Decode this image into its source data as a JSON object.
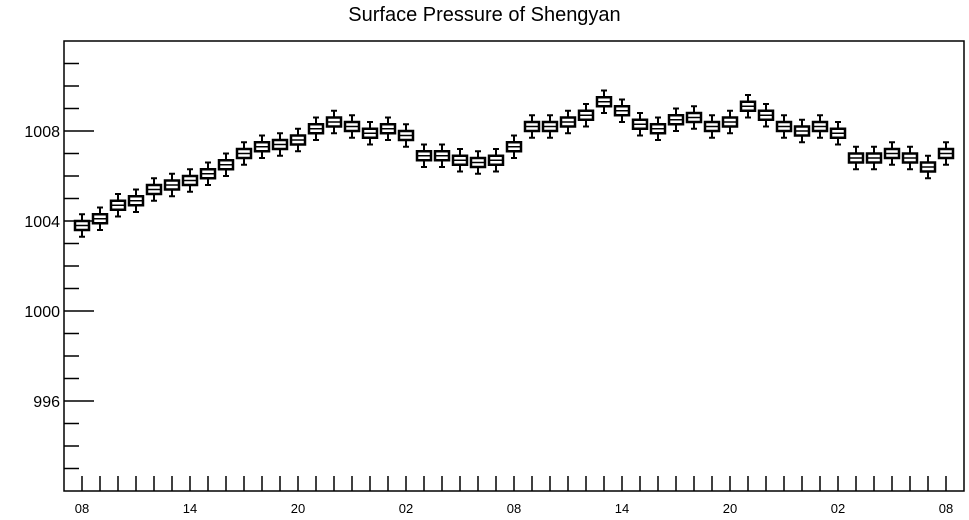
{
  "chart_data": {
    "type": "box",
    "title": "Surface Pressure of Shengyan",
    "xlabel": "",
    "ylabel": "",
    "ylim": [
      992.0,
      1012.0
    ],
    "y_ticks": [
      996,
      1000,
      1004,
      1008
    ],
    "x_tick_labels": [
      "08",
      "14",
      "20",
      "02",
      "08",
      "14",
      "20",
      "02",
      "08"
    ],
    "x_tick_steps": [
      0,
      6,
      12,
      18,
      24,
      30,
      36,
      42,
      48
    ],
    "grid": false,
    "box_series": [
      {
        "step": 0,
        "median": 1003.8,
        "q1": 1003.6,
        "q3": 1004.0,
        "low": 1003.3,
        "high": 1004.3
      },
      {
        "step": 1,
        "median": 1004.1,
        "q1": 1003.9,
        "q3": 1004.3,
        "low": 1003.6,
        "high": 1004.6
      },
      {
        "step": 2,
        "median": 1004.7,
        "q1": 1004.5,
        "q3": 1004.9,
        "low": 1004.2,
        "high": 1005.2
      },
      {
        "step": 3,
        "median": 1004.9,
        "q1": 1004.7,
        "q3": 1005.1,
        "low": 1004.4,
        "high": 1005.4
      },
      {
        "step": 4,
        "median": 1005.4,
        "q1": 1005.2,
        "q3": 1005.6,
        "low": 1004.9,
        "high": 1005.9
      },
      {
        "step": 5,
        "median": 1005.6,
        "q1": 1005.4,
        "q3": 1005.8,
        "low": 1005.1,
        "high": 1006.1
      },
      {
        "step": 6,
        "median": 1005.8,
        "q1": 1005.6,
        "q3": 1006.0,
        "low": 1005.3,
        "high": 1006.3
      },
      {
        "step": 7,
        "median": 1006.1,
        "q1": 1005.9,
        "q3": 1006.3,
        "low": 1005.6,
        "high": 1006.6
      },
      {
        "step": 8,
        "median": 1006.5,
        "q1": 1006.3,
        "q3": 1006.7,
        "low": 1006.0,
        "high": 1007.0
      },
      {
        "step": 9,
        "median": 1007.0,
        "q1": 1006.8,
        "q3": 1007.2,
        "low": 1006.5,
        "high": 1007.5
      },
      {
        "step": 10,
        "median": 1007.3,
        "q1": 1007.1,
        "q3": 1007.5,
        "low": 1006.8,
        "high": 1007.8
      },
      {
        "step": 11,
        "median": 1007.4,
        "q1": 1007.2,
        "q3": 1007.6,
        "low": 1006.9,
        "high": 1007.9
      },
      {
        "step": 12,
        "median": 1007.6,
        "q1": 1007.4,
        "q3": 1007.8,
        "low": 1007.1,
        "high": 1008.1
      },
      {
        "step": 13,
        "median": 1008.1,
        "q1": 1007.9,
        "q3": 1008.3,
        "low": 1007.6,
        "high": 1008.6
      },
      {
        "step": 14,
        "median": 1008.4,
        "q1": 1008.2,
        "q3": 1008.6,
        "low": 1007.9,
        "high": 1008.9
      },
      {
        "step": 15,
        "median": 1008.2,
        "q1": 1008.0,
        "q3": 1008.4,
        "low": 1007.7,
        "high": 1008.7
      },
      {
        "step": 16,
        "median": 1007.9,
        "q1": 1007.7,
        "q3": 1008.1,
        "low": 1007.4,
        "high": 1008.4
      },
      {
        "step": 17,
        "median": 1008.1,
        "q1": 1007.9,
        "q3": 1008.3,
        "low": 1007.6,
        "high": 1008.6
      },
      {
        "step": 18,
        "median": 1007.8,
        "q1": 1007.6,
        "q3": 1008.0,
        "low": 1007.3,
        "high": 1008.3
      },
      {
        "step": 19,
        "median": 1006.9,
        "q1": 1006.7,
        "q3": 1007.1,
        "low": 1006.4,
        "high": 1007.4
      },
      {
        "step": 20,
        "median": 1006.9,
        "q1": 1006.7,
        "q3": 1007.1,
        "low": 1006.4,
        "high": 1007.4
      },
      {
        "step": 21,
        "median": 1006.7,
        "q1": 1006.5,
        "q3": 1006.9,
        "low": 1006.2,
        "high": 1007.2
      },
      {
        "step": 22,
        "median": 1006.6,
        "q1": 1006.4,
        "q3": 1006.8,
        "low": 1006.1,
        "high": 1007.1
      },
      {
        "step": 23,
        "median": 1006.7,
        "q1": 1006.5,
        "q3": 1006.9,
        "low": 1006.2,
        "high": 1007.2
      },
      {
        "step": 24,
        "median": 1007.3,
        "q1": 1007.1,
        "q3": 1007.5,
        "low": 1006.8,
        "high": 1007.8
      },
      {
        "step": 25,
        "median": 1008.2,
        "q1": 1008.0,
        "q3": 1008.4,
        "low": 1007.7,
        "high": 1008.7
      },
      {
        "step": 26,
        "median": 1008.2,
        "q1": 1008.0,
        "q3": 1008.4,
        "low": 1007.7,
        "high": 1008.7
      },
      {
        "step": 27,
        "median": 1008.4,
        "q1": 1008.2,
        "q3": 1008.6,
        "low": 1007.9,
        "high": 1008.9
      },
      {
        "step": 28,
        "median": 1008.7,
        "q1": 1008.5,
        "q3": 1008.9,
        "low": 1008.2,
        "high": 1009.2
      },
      {
        "step": 29,
        "median": 1009.3,
        "q1": 1009.1,
        "q3": 1009.5,
        "low": 1008.8,
        "high": 1009.8
      },
      {
        "step": 30,
        "median": 1008.9,
        "q1": 1008.7,
        "q3": 1009.1,
        "low": 1008.4,
        "high": 1009.4
      },
      {
        "step": 31,
        "median": 1008.3,
        "q1": 1008.1,
        "q3": 1008.5,
        "low": 1007.8,
        "high": 1008.8
      },
      {
        "step": 32,
        "median": 1008.1,
        "q1": 1007.9,
        "q3": 1008.3,
        "low": 1007.6,
        "high": 1008.6
      },
      {
        "step": 33,
        "median": 1008.5,
        "q1": 1008.3,
        "q3": 1008.7,
        "low": 1008.0,
        "high": 1009.0
      },
      {
        "step": 34,
        "median": 1008.6,
        "q1": 1008.4,
        "q3": 1008.8,
        "low": 1008.1,
        "high": 1009.1
      },
      {
        "step": 35,
        "median": 1008.2,
        "q1": 1008.0,
        "q3": 1008.4,
        "low": 1007.7,
        "high": 1008.7
      },
      {
        "step": 36,
        "median": 1008.4,
        "q1": 1008.2,
        "q3": 1008.6,
        "low": 1007.9,
        "high": 1008.9
      },
      {
        "step": 37,
        "median": 1009.1,
        "q1": 1008.9,
        "q3": 1009.3,
        "low": 1008.6,
        "high": 1009.6
      },
      {
        "step": 38,
        "median": 1008.7,
        "q1": 1008.5,
        "q3": 1008.9,
        "low": 1008.2,
        "high": 1009.2
      },
      {
        "step": 39,
        "median": 1008.2,
        "q1": 1008.0,
        "q3": 1008.4,
        "low": 1007.7,
        "high": 1008.7
      },
      {
        "step": 40,
        "median": 1008.0,
        "q1": 1007.8,
        "q3": 1008.2,
        "low": 1007.5,
        "high": 1008.5
      },
      {
        "step": 41,
        "median": 1008.2,
        "q1": 1008.0,
        "q3": 1008.4,
        "low": 1007.7,
        "high": 1008.7
      },
      {
        "step": 42,
        "median": 1007.9,
        "q1": 1007.7,
        "q3": 1008.1,
        "low": 1007.4,
        "high": 1008.4
      },
      {
        "step": 43,
        "median": 1006.8,
        "q1": 1006.6,
        "q3": 1007.0,
        "low": 1006.3,
        "high": 1007.3
      },
      {
        "step": 44,
        "median": 1006.8,
        "q1": 1006.6,
        "q3": 1007.0,
        "low": 1006.3,
        "high": 1007.3
      },
      {
        "step": 45,
        "median": 1007.0,
        "q1": 1006.8,
        "q3": 1007.2,
        "low": 1006.5,
        "high": 1007.5
      },
      {
        "step": 46,
        "median": 1006.8,
        "q1": 1006.6,
        "q3": 1007.0,
        "low": 1006.3,
        "high": 1007.3
      },
      {
        "step": 47,
        "median": 1006.4,
        "q1": 1006.2,
        "q3": 1006.6,
        "low": 1005.9,
        "high": 1006.9
      },
      {
        "step": 48,
        "median": 1007.0,
        "q1": 1006.8,
        "q3": 1007.2,
        "low": 1006.5,
        "high": 1007.5
      }
    ],
    "colors": {
      "box_fill": "#ffffff",
      "box_stroke": "#000000",
      "axis": "#000000"
    }
  }
}
